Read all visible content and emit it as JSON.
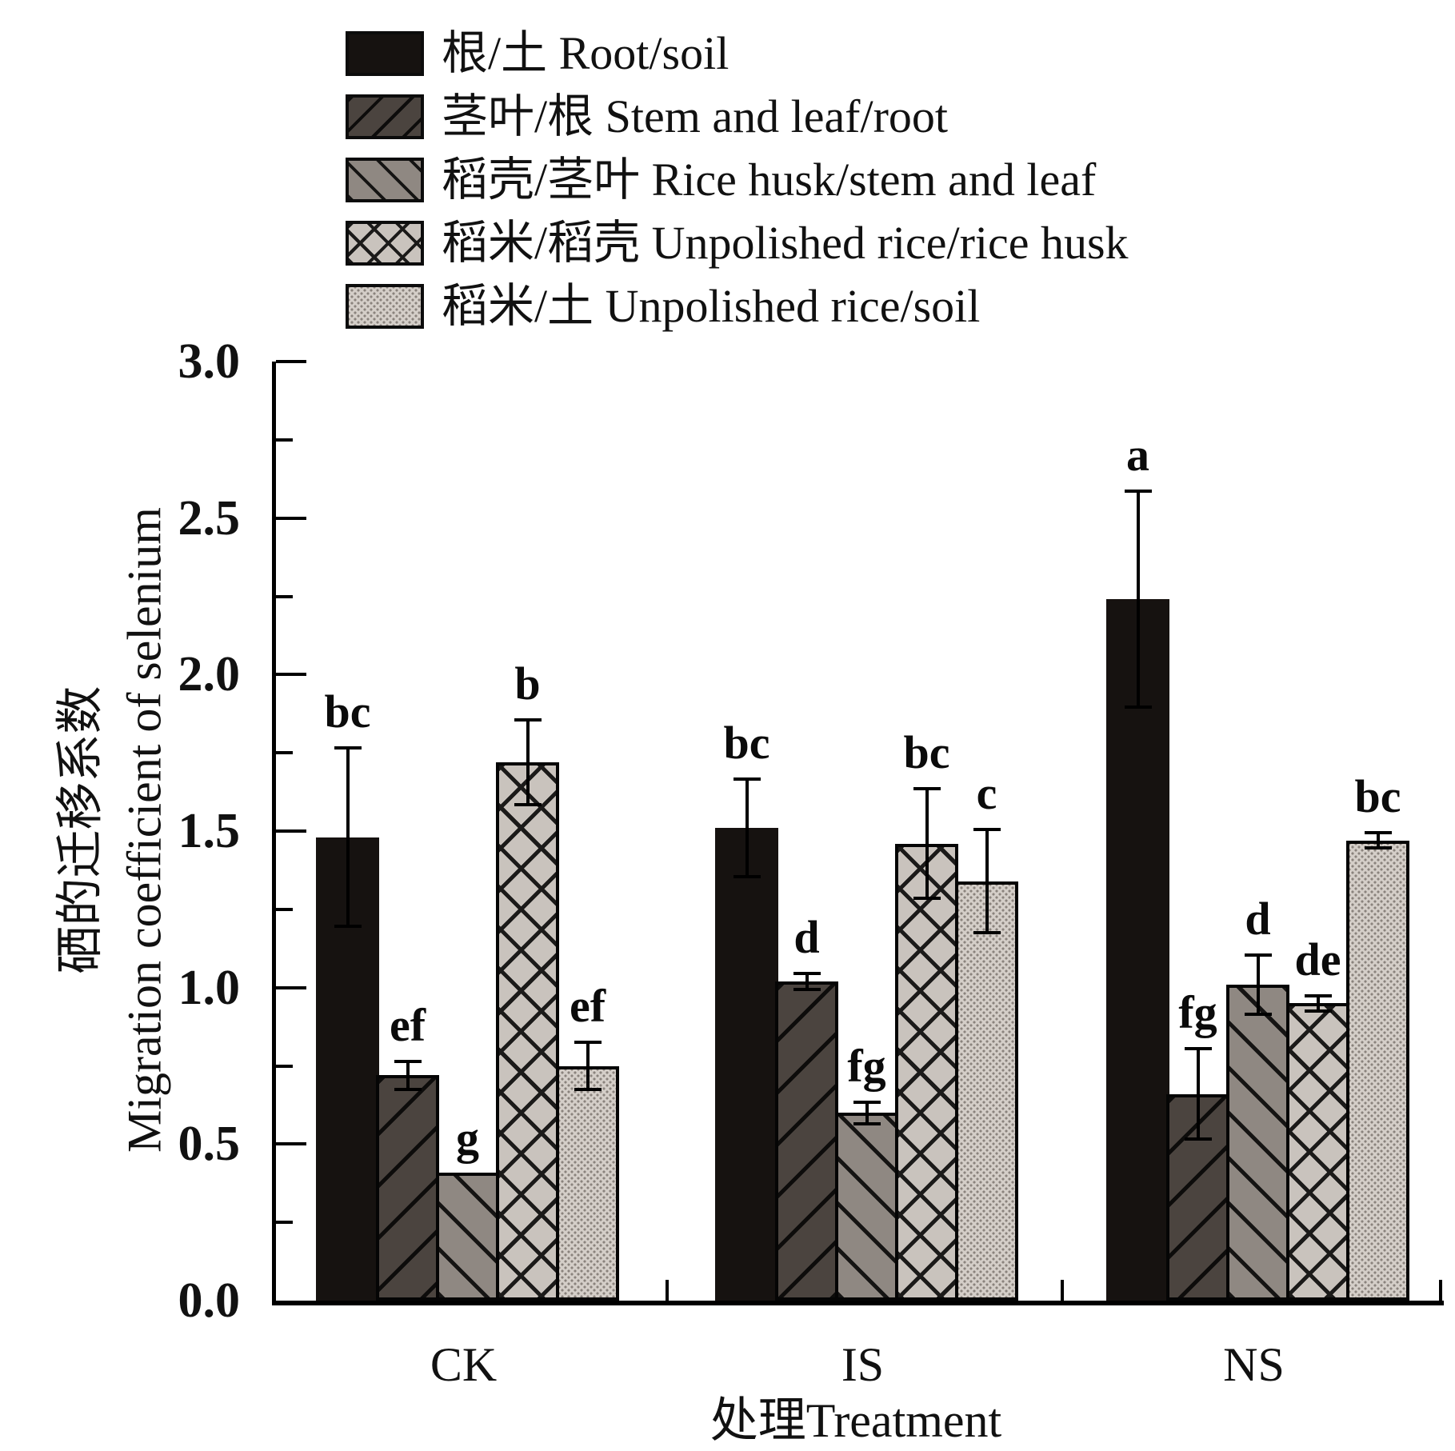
{
  "colors": {
    "background": "#ffffff",
    "axis": "#000000",
    "bar_black": "#161210",
    "bar_dark_hatch": "#4b443f",
    "bar_gray_hatch": "#8f8882",
    "bar_crosshatch": "#c9c3bd",
    "bar_stipple": "#d4cec8"
  },
  "axes": {
    "ylabel_zh": "硒的迁移系数",
    "ylabel_en": "Migration coefficient of selenium",
    "xlabel": "处理Treatment"
  },
  "chart_data": {
    "type": "bar",
    "title": "",
    "xlabel": "处理Treatment",
    "ylabel": "硒的迁移系数 Migration coefficient of selenium",
    "ylim": [
      0.0,
      3.0
    ],
    "ytick_major_step": 0.5,
    "ytick_minor_step": 0.25,
    "ytick_labels": [
      "0.0",
      "0.5",
      "1.0",
      "1.5",
      "2.0",
      "2.5",
      "3.0"
    ],
    "grid": "off",
    "legend_position": "top-left",
    "error_bars": "symmetric, cap style",
    "categories": [
      "CK",
      "IS",
      "NS"
    ],
    "series": [
      {
        "name": "根/土 Root/soil",
        "pattern": "solid-black",
        "values": [
          1.48,
          1.51,
          2.24
        ],
        "errors": [
          0.29,
          0.16,
          0.35
        ],
        "sig_letters": [
          "bc",
          "bc",
          "a"
        ]
      },
      {
        "name": "茎叶/根 Stem and leaf/root",
        "pattern": "hatch-forward",
        "values": [
          0.72,
          1.02,
          0.66
        ],
        "errors": [
          0.05,
          0.03,
          0.15
        ],
        "sig_letters": [
          "ef",
          "d",
          "fg"
        ]
      },
      {
        "name": "稻壳/茎叶 Rice husk/stem and leaf",
        "pattern": "hatch-back",
        "values": [
          0.41,
          0.6,
          1.01
        ],
        "errors": [
          null,
          0.04,
          0.1
        ],
        "sig_letters": [
          "g",
          "fg",
          "d"
        ]
      },
      {
        "name": "稻米/稻壳 Unpolished rice/rice husk",
        "pattern": "diamond-crosshatch",
        "values": [
          1.72,
          1.46,
          0.95
        ],
        "errors": [
          0.14,
          0.18,
          0.03
        ],
        "sig_letters": [
          "b",
          "bc",
          "de"
        ]
      },
      {
        "name": "稻米/土 Unpolished rice/soil",
        "pattern": "stipple",
        "values": [
          0.75,
          1.34,
          1.47
        ],
        "errors": [
          0.08,
          0.17,
          0.03
        ],
        "sig_letters": [
          "ef",
          "c",
          "bc"
        ]
      }
    ]
  }
}
